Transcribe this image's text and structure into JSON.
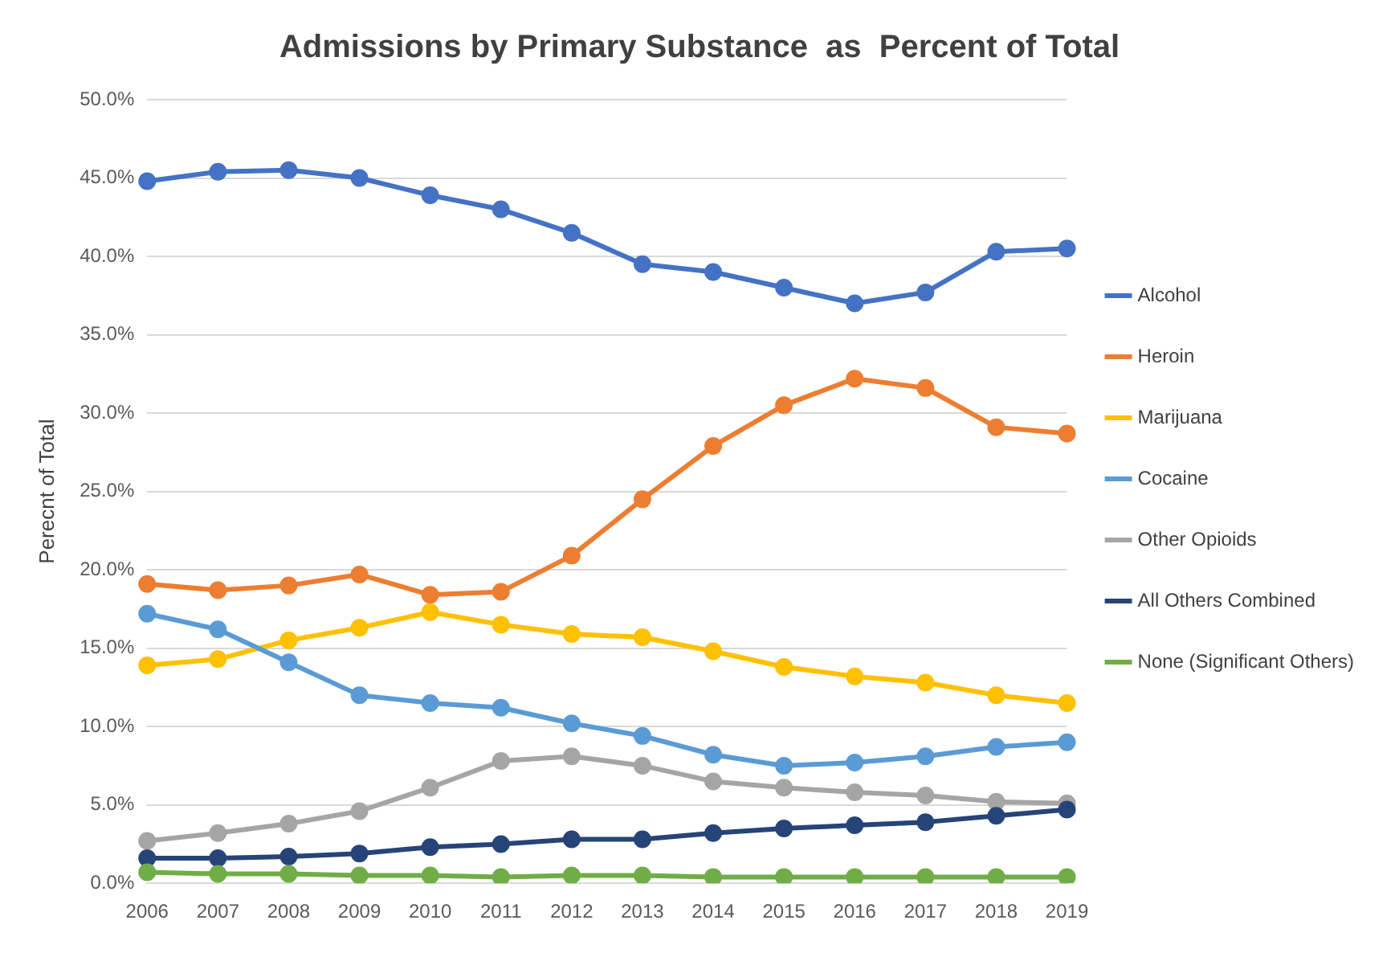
{
  "chart_data": {
    "type": "line",
    "title": "Admissions by Primary Substance  as  Percent of Total",
    "ylabel": "Perecnt of Total",
    "categories": [
      "2006",
      "2007",
      "2008",
      "2009",
      "2010",
      "2011",
      "2012",
      "2013",
      "2014",
      "2015",
      "2016",
      "2017",
      "2018",
      "2019"
    ],
    "series": [
      {
        "name": "Alcohol",
        "color": "#4472c4",
        "values": [
          44.8,
          45.4,
          45.5,
          45.0,
          43.9,
          43.0,
          41.5,
          39.5,
          39.0,
          38.0,
          37.0,
          37.7,
          40.3,
          40.5
        ]
      },
      {
        "name": "Heroin",
        "color": "#ed7d31",
        "values": [
          19.1,
          18.7,
          19.0,
          19.7,
          18.4,
          18.6,
          20.9,
          24.5,
          27.9,
          30.5,
          32.2,
          31.6,
          29.1,
          28.7
        ]
      },
      {
        "name": "Marijuana",
        "color": "#ffc000",
        "values": [
          13.9,
          14.3,
          15.5,
          16.3,
          17.3,
          16.5,
          15.9,
          15.7,
          14.8,
          13.8,
          13.2,
          12.8,
          12.0,
          11.5
        ]
      },
      {
        "name": "Cocaine",
        "color": "#5b9bd5",
        "values": [
          17.2,
          16.2,
          14.1,
          12.0,
          11.5,
          11.2,
          10.2,
          9.4,
          8.2,
          7.5,
          7.7,
          8.1,
          8.7,
          9.0
        ]
      },
      {
        "name": "Other Opioids",
        "color": "#a5a5a5",
        "values": [
          2.7,
          3.2,
          3.8,
          4.6,
          6.1,
          7.8,
          8.1,
          7.5,
          6.5,
          6.1,
          5.8,
          5.6,
          5.2,
          5.1
        ]
      },
      {
        "name": "All Others Combined",
        "color": "#264478",
        "values": [
          1.6,
          1.6,
          1.7,
          1.9,
          2.3,
          2.5,
          2.8,
          2.8,
          3.2,
          3.5,
          3.7,
          3.9,
          4.3,
          4.7
        ]
      },
      {
        "name": "None (Significant Others)",
        "color": "#70ad47",
        "values": [
          0.7,
          0.6,
          0.6,
          0.5,
          0.5,
          0.4,
          0.5,
          0.5,
          0.4,
          0.4,
          0.4,
          0.4,
          0.4,
          0.4
        ]
      }
    ],
    "ylim": [
      0,
      50
    ],
    "yticks": [
      {
        "value": 0,
        "label": "0.0%"
      },
      {
        "value": 5,
        "label": "5.0%"
      },
      {
        "value": 10,
        "label": "10.0%"
      },
      {
        "value": 15,
        "label": "15.0%"
      },
      {
        "value": 20,
        "label": "20.0%"
      },
      {
        "value": 25,
        "label": "25.0%"
      },
      {
        "value": 30,
        "label": "30.0%"
      },
      {
        "value": 35,
        "label": "35.0%"
      },
      {
        "value": 40,
        "label": "40.0%"
      },
      {
        "value": 45,
        "label": "45.0%"
      },
      {
        "value": 50,
        "label": "50.0%"
      }
    ],
    "grid": "y",
    "legend": "right",
    "marker": "circle",
    "line_style": "solid"
  }
}
